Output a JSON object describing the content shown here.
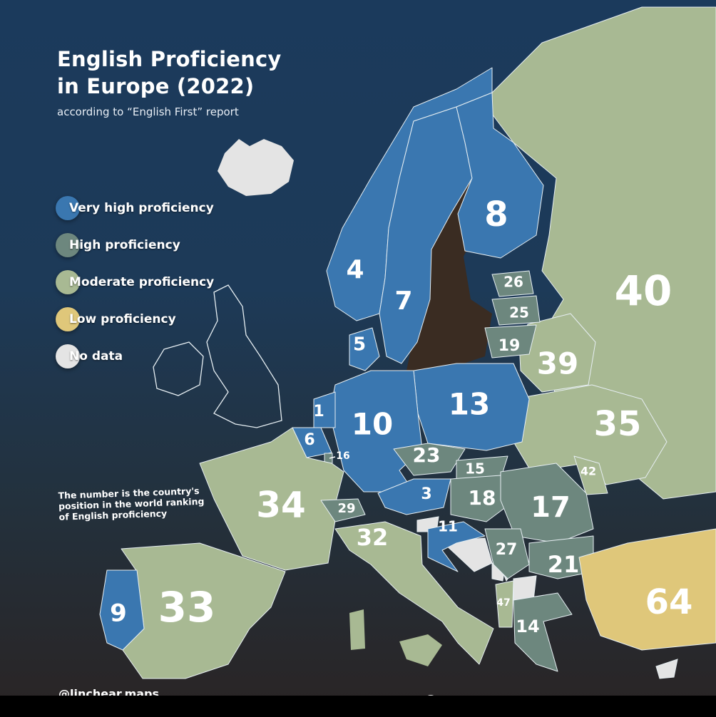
{
  "header": {
    "title_line1": "English Proficiency",
    "title_line2": "in Europe (2022)",
    "subtitle": "according to “English First” report"
  },
  "legend": [
    {
      "label": "Very high proficiency",
      "color": "#3a77b0"
    },
    {
      "label": "High proficiency",
      "color": "#6d877e"
    },
    {
      "label": "Moderate proficiency",
      "color": "#a8b993"
    },
    {
      "label": "Low proficiency",
      "color": "#dfc77a"
    },
    {
      "label": "No data",
      "color": "#e4e4e4"
    }
  ],
  "note": "The number is the country's position in the world ranking of English proficiency",
  "credit": "@linchear.maps",
  "colors": {
    "sea_top": "#1b3a5c",
    "baltic": "#3a2c22",
    "border": "#e6eef2"
  },
  "map": {
    "regions": [
      {
        "rank": "40",
        "level": 2
      },
      {
        "rank": "39",
        "level": 2
      },
      {
        "rank": "35",
        "level": 2
      },
      {
        "rank": "42",
        "level": 2
      },
      {
        "rank": "4",
        "level": 0
      },
      {
        "rank": "7",
        "level": 0
      },
      {
        "rank": "8",
        "level": 0
      },
      {
        "rank": "5",
        "level": 0
      },
      {
        "rank": "26",
        "level": 1
      },
      {
        "rank": "25",
        "level": 1
      },
      {
        "rank": "19",
        "level": 1
      },
      {
        "rank": "13",
        "level": 0
      },
      {
        "rank": "10",
        "level": 0
      },
      {
        "rank": "1",
        "level": 0
      },
      {
        "rank": "6",
        "level": 0
      },
      {
        "rank": "16",
        "level": 1
      },
      {
        "rank": "34",
        "level": 2
      },
      {
        "rank": "29",
        "level": 1
      },
      {
        "rank": "23",
        "level": 1
      },
      {
        "rank": "15",
        "level": 1
      },
      {
        "rank": "3",
        "level": 0
      },
      {
        "rank": "18",
        "level": 1
      },
      {
        "rank": "17",
        "level": 1
      },
      {
        "rank": "21",
        "level": 1
      },
      {
        "rank": "27",
        "level": 1
      },
      {
        "rank": "11",
        "level": 0
      },
      {
        "rank": "47",
        "level": 2
      },
      {
        "rank": "14",
        "level": 1
      },
      {
        "rank": "32",
        "level": 2
      },
      {
        "rank": "33",
        "level": 2
      },
      {
        "rank": "9",
        "level": 0
      },
      {
        "rank": "64",
        "level": 3
      }
    ]
  }
}
